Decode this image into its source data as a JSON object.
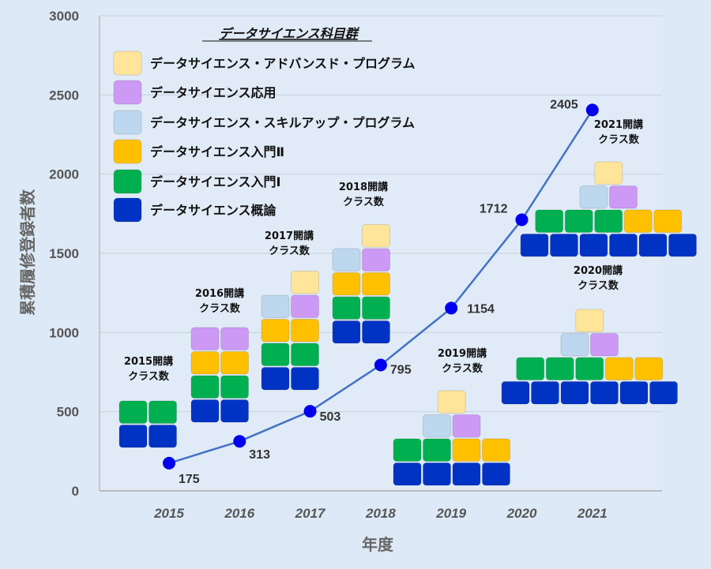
{
  "chart_data": {
    "type": "line",
    "title": "",
    "xlabel": "年度",
    "ylabel": "累積履修登録者数",
    "ylim": [
      0,
      3000
    ],
    "yticks": [
      0,
      500,
      1000,
      1500,
      2000,
      2500,
      3000
    ],
    "grid": true,
    "x": [
      "2015",
      "2016",
      "2017",
      "2018",
      "2019",
      "2020",
      "2021"
    ],
    "series": [
      {
        "name": "累積履修登録者数",
        "values": [
          175,
          313,
          503,
          795,
          1154,
          1712,
          2405
        ]
      }
    ],
    "legend": {
      "title": "データサイエンス科目群",
      "placement": "top-left",
      "items": [
        {
          "key": "advanced",
          "label": "データサイエンス・アドバンスド・プログラム",
          "color": "#ffe599"
        },
        {
          "key": "applied",
          "label": "データサイエンス応用",
          "color": "#cc99f5"
        },
        {
          "key": "skillup",
          "label": "データサイエンス・スキルアップ・プログラム",
          "color": "#bdd7ee"
        },
        {
          "key": "intro2",
          "label": "データサイエンス入門Ⅱ",
          "color": "#ffc000"
        },
        {
          "key": "intro1",
          "label": "データサイエンス入門Ⅰ",
          "color": "#00b050"
        },
        {
          "key": "overview",
          "label": "データサイエンス概論",
          "color": "#0033c4"
        }
      ]
    },
    "class_counts": [
      {
        "year": "2015",
        "label1": "2015開講",
        "label2": "クラス数",
        "overview": 2,
        "intro1": 2,
        "intro2": 0,
        "skillup": 0,
        "applied": 0,
        "advanced": 0
      },
      {
        "year": "2016",
        "label1": "2016開講",
        "label2": "クラス数",
        "overview": 2,
        "intro1": 2,
        "intro2": 2,
        "skillup": 0,
        "applied": 2,
        "advanced": 0
      },
      {
        "year": "2017",
        "label1": "2017開講",
        "label2": "クラス数",
        "overview": 2,
        "intro1": 2,
        "intro2": 2,
        "skillup": 1,
        "applied": 1,
        "advanced": 1
      },
      {
        "year": "2018",
        "label1": "2018開講",
        "label2": "クラス数",
        "overview": 2,
        "intro1": 2,
        "intro2": 2,
        "skillup": 1,
        "applied": 1,
        "advanced": 1
      },
      {
        "year": "2019",
        "label1": "2019開講",
        "label2": "クラス数",
        "overview": 4,
        "intro1": 2,
        "intro2": 2,
        "skillup": 1,
        "applied": 1,
        "advanced": 1
      },
      {
        "year": "2020",
        "label1": "2020開講",
        "label2": "クラス数",
        "overview": 6,
        "intro1": 3,
        "intro2": 2,
        "skillup": 1,
        "applied": 1,
        "advanced": 1
      },
      {
        "year": "2021",
        "label1": "2021開講",
        "label2": "クラス数",
        "overview": 6,
        "intro1": 3,
        "intro2": 2,
        "skillup": 1,
        "applied": 1,
        "advanced": 1
      }
    ],
    "line_color": "#4472c4",
    "marker_color": "#0000ee"
  }
}
